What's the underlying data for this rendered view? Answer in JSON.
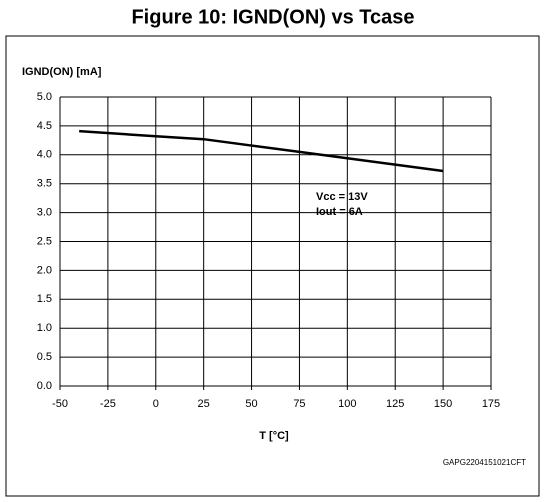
{
  "chart_data": {
    "type": "line",
    "title": "Figure 10: IGND(ON) vs Tcase",
    "y_label": "IGND(ON) [mA]",
    "x_label": "T [°C]",
    "annotations": [
      "Vcc = 13V",
      "Iout = 6A"
    ],
    "footer": "GAPG2204151021CFT",
    "x": [
      -40,
      0,
      25,
      50,
      75,
      100,
      125,
      150
    ],
    "series": [
      {
        "name": "IGND(ON)",
        "color": "#000000",
        "values": [
          4.41,
          4.32,
          4.27,
          4.16,
          4.05,
          3.94,
          3.83,
          3.72
        ]
      }
    ],
    "xlim": [
      -50,
      175
    ],
    "xticks": [
      -50,
      -25,
      0,
      25,
      50,
      75,
      100,
      125,
      150,
      175
    ],
    "ylim": [
      0,
      5
    ],
    "yticks": [
      {
        "value": 0,
        "label": "0.0"
      },
      0.5,
      {
        "value": 1,
        "label": "1.0"
      },
      1.5,
      {
        "value": 2,
        "label": "2.0"
      },
      2.5,
      {
        "value": 3,
        "label": "3.0"
      },
      3.5,
      {
        "value": 4,
        "label": "4.0"
      },
      4.5,
      {
        "value": 5,
        "label": "5.0"
      }
    ],
    "grid": true
  }
}
